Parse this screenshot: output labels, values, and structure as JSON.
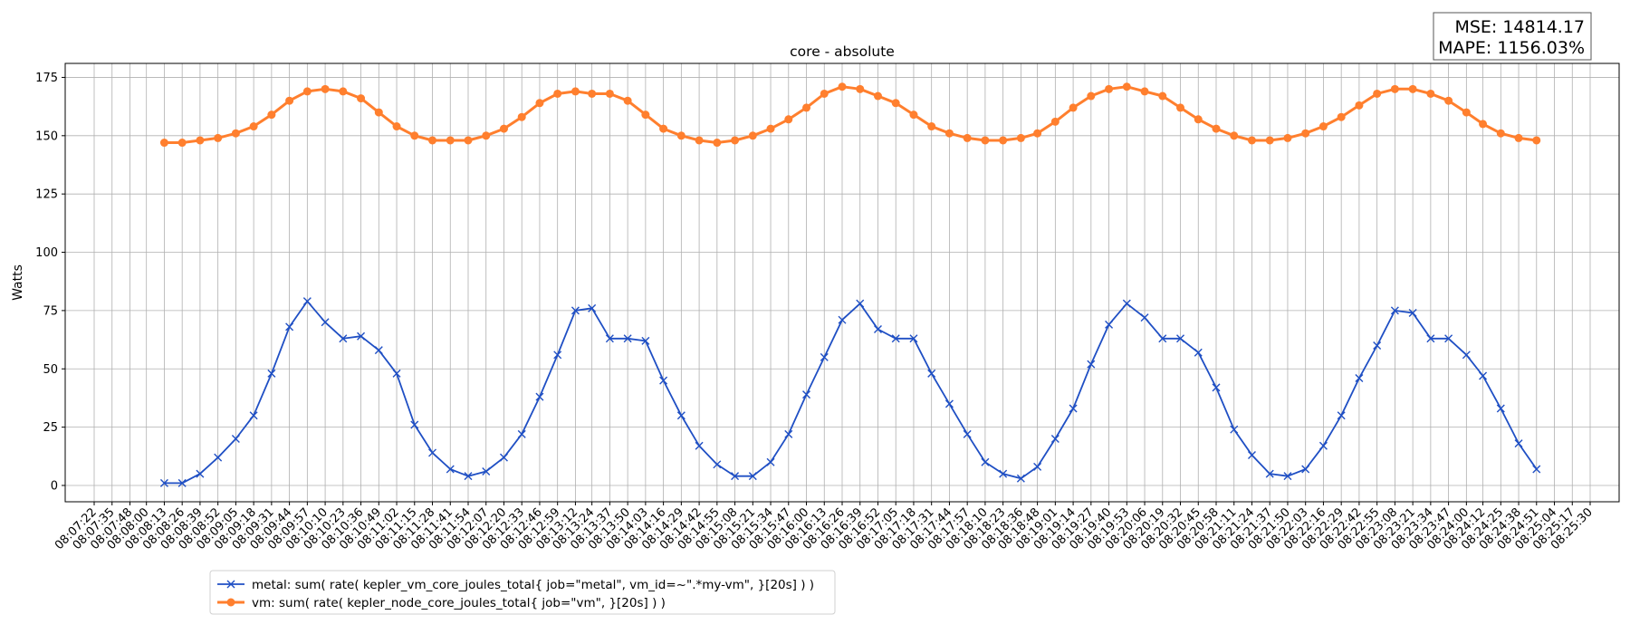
{
  "chart_data": {
    "type": "line",
    "title": "core - absolute",
    "xlabel": "",
    "ylabel": "Watts",
    "ylim": [
      -7,
      181
    ],
    "yticks": [
      0,
      25,
      50,
      75,
      100,
      125,
      150,
      175
    ],
    "grid": true,
    "legend_position": "bottom-left, below plot",
    "stats": [
      "MSE: 14814.17",
      "MAPE: 1156.03%"
    ],
    "x_ticks": [
      "08:07:22",
      "08:07:35",
      "08:07:48",
      "08:08:00",
      "08:08:13",
      "08:08:26",
      "08:08:39",
      "08:08:52",
      "08:09:05",
      "08:09:18",
      "08:09:31",
      "08:09:44",
      "08:09:57",
      "08:10:10",
      "08:10:23",
      "08:10:36",
      "08:10:49",
      "08:11:02",
      "08:11:15",
      "08:11:28",
      "08:11:41",
      "08:11:54",
      "08:12:07",
      "08:12:20",
      "08:12:33",
      "08:12:46",
      "08:12:59",
      "08:13:12",
      "08:13:24",
      "08:13:37",
      "08:13:50",
      "08:14:03",
      "08:14:16",
      "08:14:29",
      "08:14:42",
      "08:14:55",
      "08:15:08",
      "08:15:21",
      "08:15:34",
      "08:15:47",
      "08:16:00",
      "08:16:13",
      "08:16:26",
      "08:16:39",
      "08:16:52",
      "08:17:05",
      "08:17:18",
      "08:17:31",
      "08:17:44",
      "08:17:57",
      "08:18:10",
      "08:18:23",
      "08:18:36",
      "08:18:48",
      "08:19:01",
      "08:19:14",
      "08:19:27",
      "08:19:40",
      "08:19:53",
      "08:20:06",
      "08:20:19",
      "08:20:32",
      "08:20:45",
      "08:20:58",
      "08:21:11",
      "08:21:24",
      "08:21:37",
      "08:21:50",
      "08:22:03",
      "08:22:16",
      "08:22:29",
      "08:22:42",
      "08:22:55",
      "08:23:08",
      "08:23:21",
      "08:23:34",
      "08:23:47",
      "08:24:00",
      "08:24:12",
      "08:24:25",
      "08:24:38",
      "08:24:51",
      "08:25:04",
      "08:25:17",
      "08:25:30"
    ],
    "x_range": [
      "08:07:22",
      "08:25:30"
    ],
    "series": [
      {
        "name": "metal: sum( rate( kepler_vm_core_joules_total{ job=\"metal\", vm_id=~\".*my-vm\", }[20s] ) )",
        "color": "#1f4fc4",
        "marker": "x",
        "time": [
          "08:08:13",
          "08:08:26",
          "08:08:39",
          "08:08:52",
          "08:09:05",
          "08:09:18",
          "08:09:31",
          "08:09:44",
          "08:09:57",
          "08:10:10",
          "08:10:23",
          "08:10:36",
          "08:10:49",
          "08:11:02",
          "08:11:15",
          "08:11:28",
          "08:11:41",
          "08:11:54",
          "08:12:07",
          "08:12:20",
          "08:12:33",
          "08:12:46",
          "08:12:59",
          "08:13:12",
          "08:13:24",
          "08:13:37",
          "08:13:50",
          "08:14:03",
          "08:14:16",
          "08:14:29",
          "08:14:42",
          "08:14:55",
          "08:15:08",
          "08:15:21",
          "08:15:34",
          "08:15:47",
          "08:16:00",
          "08:16:13",
          "08:16:26",
          "08:16:39",
          "08:16:52",
          "08:17:05",
          "08:17:18",
          "08:17:31",
          "08:17:44",
          "08:17:57",
          "08:18:10",
          "08:18:23",
          "08:18:36",
          "08:18:48",
          "08:19:01",
          "08:19:14",
          "08:19:27",
          "08:19:40",
          "08:19:53",
          "08:20:06",
          "08:20:19",
          "08:20:32",
          "08:20:45",
          "08:20:58",
          "08:21:11",
          "08:21:24",
          "08:21:37",
          "08:21:50",
          "08:22:03",
          "08:22:16",
          "08:22:29",
          "08:22:42",
          "08:22:55",
          "08:23:08",
          "08:23:21",
          "08:23:34",
          "08:23:47",
          "08:24:00",
          "08:24:12",
          "08:24:25",
          "08:24:38",
          "08:24:51"
        ],
        "values": [
          1,
          1,
          5,
          12,
          20,
          30,
          48,
          68,
          79,
          70,
          63,
          64,
          58,
          48,
          26,
          14,
          7,
          4,
          6,
          12,
          22,
          38,
          56,
          75,
          76,
          63,
          63,
          62,
          45,
          30,
          17,
          9,
          4,
          4,
          10,
          22,
          39,
          55,
          71,
          78,
          67,
          63,
          63,
          48,
          35,
          22,
          10,
          5,
          3,
          8,
          20,
          33,
          52,
          69,
          78,
          72,
          63,
          63,
          57,
          42,
          24,
          13,
          5,
          4,
          7,
          17,
          30,
          46,
          60,
          75,
          74,
          63,
          63,
          56,
          47,
          33,
          18,
          7
        ]
      },
      {
        "name": "vm: sum( rate( kepler_node_core_joules_total{ job=\"vm\", }[20s] ) )",
        "color": "#ff7f2e",
        "marker": "o",
        "time": [
          "08:08:13",
          "08:08:26",
          "08:08:39",
          "08:08:52",
          "08:09:05",
          "08:09:18",
          "08:09:31",
          "08:09:44",
          "08:09:57",
          "08:10:10",
          "08:10:23",
          "08:10:36",
          "08:10:49",
          "08:11:02",
          "08:11:15",
          "08:11:28",
          "08:11:41",
          "08:11:54",
          "08:12:07",
          "08:12:20",
          "08:12:33",
          "08:12:46",
          "08:12:59",
          "08:13:12",
          "08:13:24",
          "08:13:37",
          "08:13:50",
          "08:14:03",
          "08:14:16",
          "08:14:29",
          "08:14:42",
          "08:14:55",
          "08:15:08",
          "08:15:21",
          "08:15:34",
          "08:15:47",
          "08:16:00",
          "08:16:13",
          "08:16:26",
          "08:16:39",
          "08:16:52",
          "08:17:05",
          "08:17:18",
          "08:17:31",
          "08:17:44",
          "08:17:57",
          "08:18:10",
          "08:18:23",
          "08:18:36",
          "08:18:48",
          "08:19:01",
          "08:19:14",
          "08:19:27",
          "08:19:40",
          "08:19:53",
          "08:20:06",
          "08:20:19",
          "08:20:32",
          "08:20:45",
          "08:20:58",
          "08:21:11",
          "08:21:24",
          "08:21:37",
          "08:21:50",
          "08:22:03",
          "08:22:16",
          "08:22:29",
          "08:22:42",
          "08:22:55",
          "08:23:08",
          "08:23:21",
          "08:23:34",
          "08:23:47",
          "08:24:00",
          "08:24:12",
          "08:24:25",
          "08:24:38",
          "08:24:51"
        ],
        "values": [
          147,
          147,
          148,
          149,
          151,
          154,
          159,
          165,
          169,
          170,
          169,
          166,
          160,
          154,
          150,
          148,
          148,
          148,
          150,
          153,
          158,
          164,
          168,
          169,
          168,
          168,
          165,
          159,
          153,
          150,
          148,
          147,
          148,
          150,
          153,
          157,
          162,
          168,
          171,
          170,
          167,
          164,
          159,
          154,
          151,
          149,
          148,
          148,
          149,
          151,
          156,
          162,
          167,
          170,
          171,
          169,
          167,
          162,
          157,
          153,
          150,
          148,
          148,
          149,
          151,
          154,
          158,
          163,
          168,
          170,
          170,
          168,
          165,
          160,
          155,
          151,
          149,
          148
        ]
      }
    ]
  }
}
